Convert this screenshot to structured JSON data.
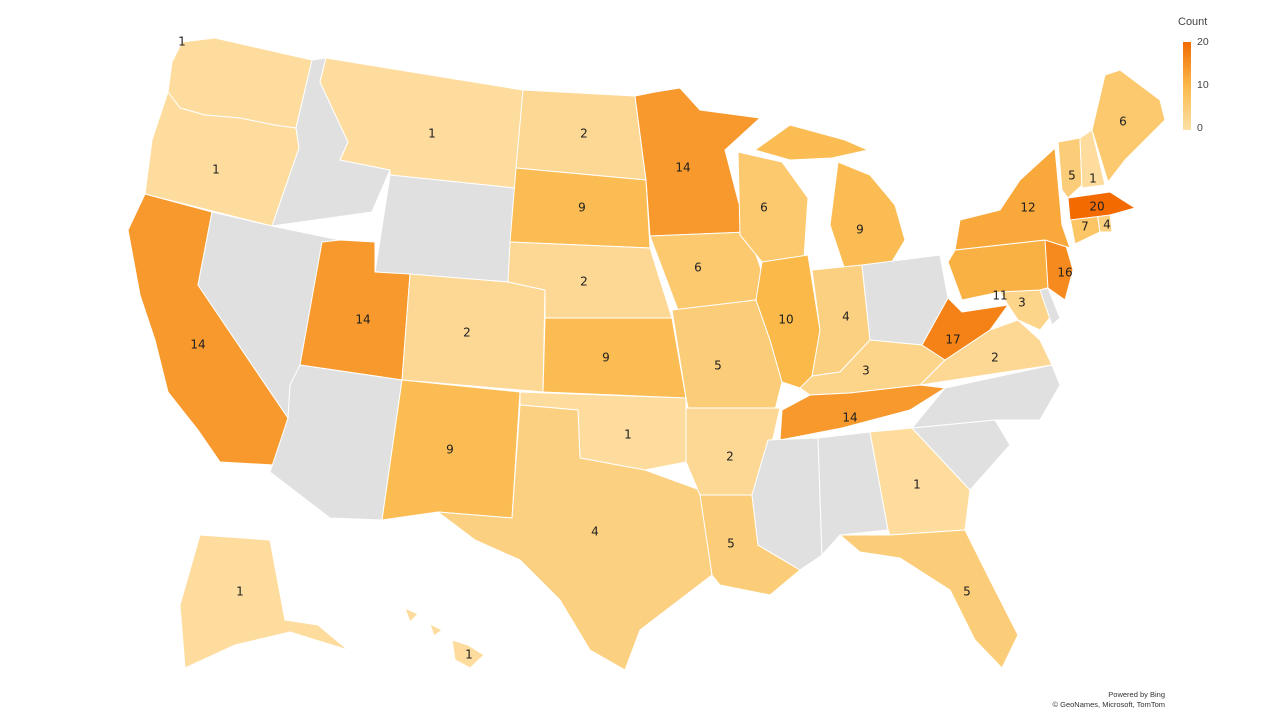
{
  "legend": {
    "title": "Count",
    "ticks": [
      "20",
      "10",
      "0"
    ],
    "colors": {
      "low": "#fde0a6",
      "mid": "#fbb94a",
      "high": "#f26a00",
      "nodata": "#e0e0e0"
    }
  },
  "attribution": {
    "line1": "Powered by Bing",
    "line2": "© GeoNames, Microsoft, TomTom"
  },
  "states": [
    {
      "name": "Washington",
      "count": 1
    },
    {
      "name": "Oregon",
      "count": 1
    },
    {
      "name": "California",
      "count": 14
    },
    {
      "name": "Idaho",
      "count": null
    },
    {
      "name": "Nevada",
      "count": null
    },
    {
      "name": "Montana",
      "count": 1
    },
    {
      "name": "Wyoming",
      "count": null
    },
    {
      "name": "Utah",
      "count": 14
    },
    {
      "name": "Arizona",
      "count": null
    },
    {
      "name": "Colorado",
      "count": 2
    },
    {
      "name": "New Mexico",
      "count": 9
    },
    {
      "name": "North Dakota",
      "count": 2
    },
    {
      "name": "South Dakota",
      "count": 9
    },
    {
      "name": "Nebraska",
      "count": 2
    },
    {
      "name": "Kansas",
      "count": 9
    },
    {
      "name": "Oklahoma",
      "count": 1
    },
    {
      "name": "Texas",
      "count": 4
    },
    {
      "name": "Minnesota",
      "count": 14
    },
    {
      "name": "Iowa",
      "count": 6
    },
    {
      "name": "Missouri",
      "count": 5
    },
    {
      "name": "Arkansas",
      "count": 2
    },
    {
      "name": "Louisiana",
      "count": 5
    },
    {
      "name": "Wisconsin",
      "count": 6
    },
    {
      "name": "Illinois",
      "count": 10
    },
    {
      "name": "Michigan",
      "count": 9
    },
    {
      "name": "Indiana",
      "count": 4
    },
    {
      "name": "Ohio",
      "count": null
    },
    {
      "name": "Kentucky",
      "count": 3
    },
    {
      "name": "Tennessee",
      "count": 14
    },
    {
      "name": "Mississippi",
      "count": null
    },
    {
      "name": "Alabama",
      "count": null
    },
    {
      "name": "Georgia",
      "count": 1
    },
    {
      "name": "Florida",
      "count": 5
    },
    {
      "name": "South Carolina",
      "count": null
    },
    {
      "name": "North Carolina",
      "count": null
    },
    {
      "name": "Virginia",
      "count": 2
    },
    {
      "name": "West Virginia",
      "count": 17
    },
    {
      "name": "Maryland",
      "count": 3
    },
    {
      "name": "Delaware",
      "count": null
    },
    {
      "name": "Pennsylvania",
      "count": 11
    },
    {
      "name": "New Jersey",
      "count": 16
    },
    {
      "name": "New York",
      "count": 12
    },
    {
      "name": "Connecticut",
      "count": 7
    },
    {
      "name": "Rhode Island",
      "count": 4
    },
    {
      "name": "Massachusetts",
      "count": 20
    },
    {
      "name": "Vermont",
      "count": 5
    },
    {
      "name": "New Hampshire",
      "count": 1
    },
    {
      "name": "Maine",
      "count": 6
    },
    {
      "name": "Alaska",
      "count": 1
    },
    {
      "name": "Hawaii",
      "count": 1
    }
  ]
}
